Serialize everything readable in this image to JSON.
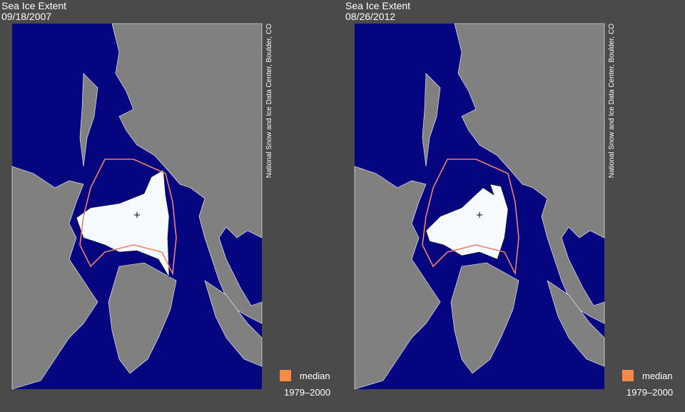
{
  "panels": [
    {
      "title": "Sea Ice Extent",
      "date": "09/18/2007",
      "credit": "National Snow and Ice Data Center, Boulder, CO",
      "legend": {
        "label": "median",
        "period": "1979–2000"
      }
    },
    {
      "title": "Sea Ice Extent",
      "date": "08/26/2012",
      "credit": "National Snow and Ice Data Center, Boulder, CO",
      "legend": {
        "label": "median",
        "period": "1979–2000"
      }
    }
  ]
}
